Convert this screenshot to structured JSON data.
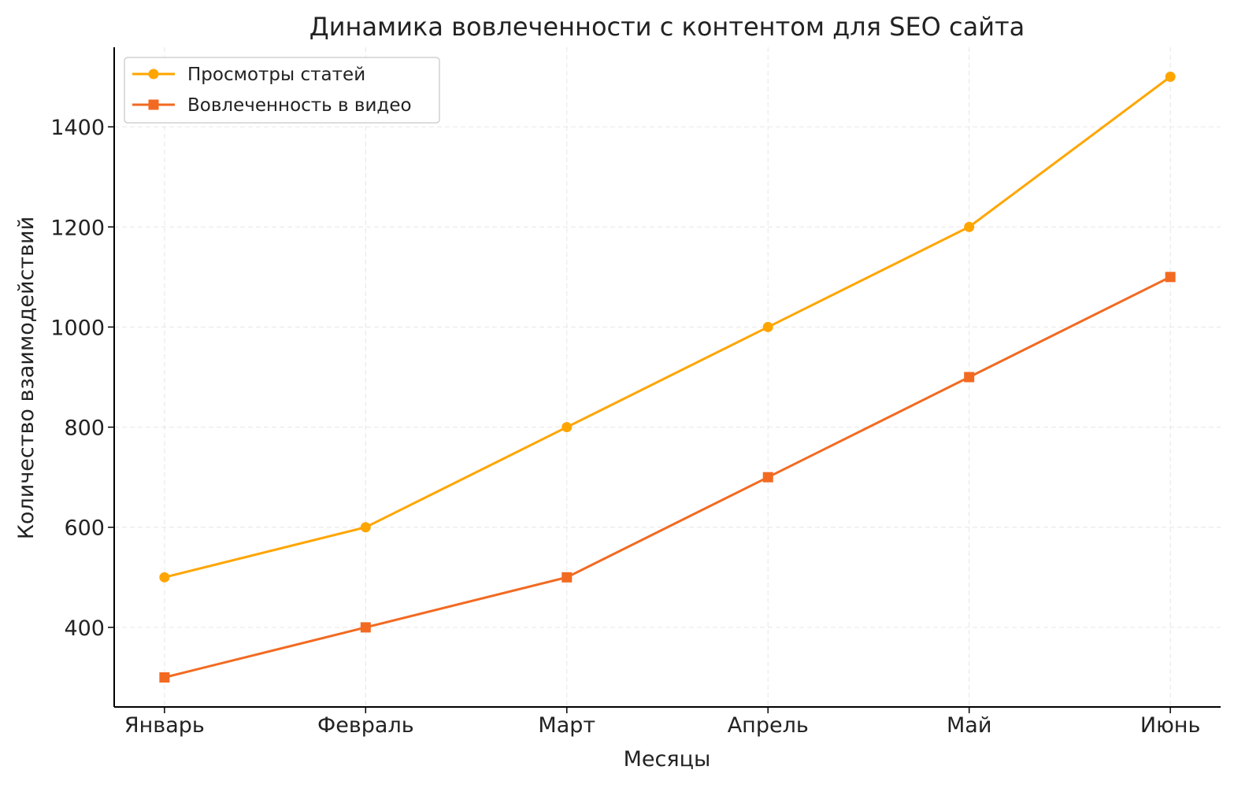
{
  "chart_data": {
    "type": "line",
    "title": "Динамика вовлеченности с контентом для SEO сайта",
    "xlabel": "Месяцы",
    "ylabel": "Количество взаимодействий",
    "categories": [
      "Январь",
      "Февраль",
      "Март",
      "Апрель",
      "Май",
      "Июнь"
    ],
    "yticks": [
      400,
      600,
      800,
      1000,
      1200,
      1400
    ],
    "ylim": [
      241,
      1559
    ],
    "grid": true,
    "legend_position": "top-left",
    "series": [
      {
        "name": "Просмотры статей",
        "values": [
          500,
          600,
          800,
          1000,
          1200,
          1500
        ],
        "color": "#FFA500",
        "marker": "circle"
      },
      {
        "name": "Вовлеченность в видео",
        "values": [
          300,
          400,
          500,
          700,
          900,
          1100
        ],
        "color": "#F26A21",
        "marker": "square"
      }
    ]
  }
}
